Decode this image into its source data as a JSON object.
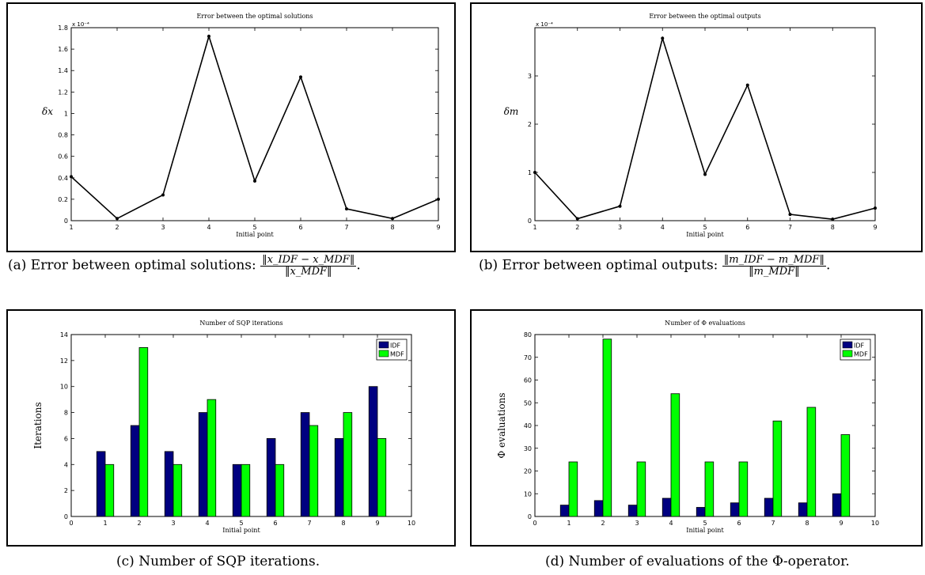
{
  "chart_data": [
    {
      "id": "a",
      "type": "line",
      "title": "Error between the optimal solutions",
      "xlabel": "Initial point",
      "ylabel": "δx",
      "exponent": "x 10⁻⁴",
      "x": [
        1,
        2,
        3,
        4,
        5,
        6,
        7,
        8,
        9
      ],
      "values": [
        0.41,
        0.02,
        0.24,
        1.72,
        0.37,
        1.34,
        0.11,
        0.02,
        0.2
      ],
      "xlim": [
        1,
        9
      ],
      "ylim": [
        0,
        1.8
      ],
      "xticks": [
        "1",
        "2",
        "3",
        "4",
        "5",
        "6",
        "7",
        "8",
        "9"
      ],
      "yticks": [
        "0",
        "0.2",
        "0.4",
        "0.6",
        "0.8",
        "1",
        "1.2",
        "1.4",
        "1.6",
        "1.8"
      ],
      "ytick_values": [
        0,
        0.2,
        0.4,
        0.6,
        0.8,
        1,
        1.2,
        1.4,
        1.6,
        1.8
      ],
      "color": "#000000"
    },
    {
      "id": "b",
      "type": "line",
      "title": "Error between the optimal outputs",
      "xlabel": "Initial point",
      "ylabel": "δm",
      "exponent": "x 10⁻⁴",
      "x": [
        1,
        2,
        3,
        4,
        5,
        6,
        7,
        8,
        9
      ],
      "values": [
        1.0,
        0.04,
        0.3,
        3.78,
        0.96,
        2.81,
        0.13,
        0.03,
        0.26
      ],
      "xlim": [
        1,
        9
      ],
      "ylim": [
        0,
        4
      ],
      "xticks": [
        "1",
        "2",
        "3",
        "4",
        "5",
        "6",
        "7",
        "8",
        "9"
      ],
      "yticks": [
        "0",
        "1",
        "2",
        "3"
      ],
      "ytick_values": [
        0,
        1,
        2,
        3
      ],
      "color": "#000000"
    },
    {
      "id": "c",
      "type": "bar",
      "title": "Number of SQP iterations",
      "xlabel": "Initial point",
      "ylabel": "Iterations",
      "categories": [
        1,
        2,
        3,
        4,
        5,
        6,
        7,
        8,
        9
      ],
      "series": [
        {
          "name": "IDF",
          "values": [
            5,
            7,
            5,
            8,
            4,
            6,
            8,
            6,
            10
          ],
          "color": "#000080"
        },
        {
          "name": "MDF",
          "values": [
            4,
            13,
            4,
            9,
            4,
            4,
            7,
            8,
            6
          ],
          "color": "#00ff00"
        }
      ],
      "xlim": [
        0,
        10
      ],
      "ylim": [
        0,
        14
      ],
      "xticks": [
        "0",
        "1",
        "2",
        "3",
        "4",
        "5",
        "6",
        "7",
        "8",
        "9",
        "10"
      ],
      "yticks": [
        "0",
        "2",
        "4",
        "6",
        "8",
        "10",
        "12",
        "14"
      ],
      "ytick_values": [
        0,
        2,
        4,
        6,
        8,
        10,
        12,
        14
      ],
      "legend": "top-right"
    },
    {
      "id": "d",
      "type": "bar",
      "title": "Number of Φ evaluations",
      "xlabel": "Initial point",
      "ylabel": "Φ evaluations",
      "categories": [
        1,
        2,
        3,
        4,
        5,
        6,
        7,
        8,
        9
      ],
      "series": [
        {
          "name": "IDF",
          "values": [
            5,
            7,
            5,
            8,
            4,
            6,
            8,
            6,
            10
          ],
          "color": "#000080"
        },
        {
          "name": "MDF",
          "values": [
            24,
            78,
            24,
            54,
            24,
            24,
            42,
            48,
            36
          ],
          "color": "#00ff00"
        }
      ],
      "xlim": [
        0,
        10
      ],
      "ylim": [
        0,
        80
      ],
      "xticks": [
        "0",
        "1",
        "2",
        "3",
        "4",
        "5",
        "6",
        "7",
        "8",
        "9",
        "10"
      ],
      "yticks": [
        "0",
        "10",
        "20",
        "30",
        "40",
        "50",
        "60",
        "70",
        "80"
      ],
      "ytick_values": [
        0,
        10,
        20,
        30,
        40,
        50,
        60,
        70,
        80
      ],
      "legend": "top-right"
    }
  ],
  "captions": {
    "a": {
      "text": "(a) Error between optimal solutions:",
      "num": "‖x_IDF − x_MDF‖",
      "den": "‖x_MDF‖",
      "end": "."
    },
    "b": {
      "text": "(b) Error between optimal outputs:",
      "num": "‖m_IDF − m_MDF‖",
      "den": "‖m_MDF‖",
      "end": "."
    },
    "c": {
      "text": "(c) Number of SQP iterations."
    },
    "d": {
      "text": "(d) Number of evaluations of the Φ-operator."
    }
  }
}
